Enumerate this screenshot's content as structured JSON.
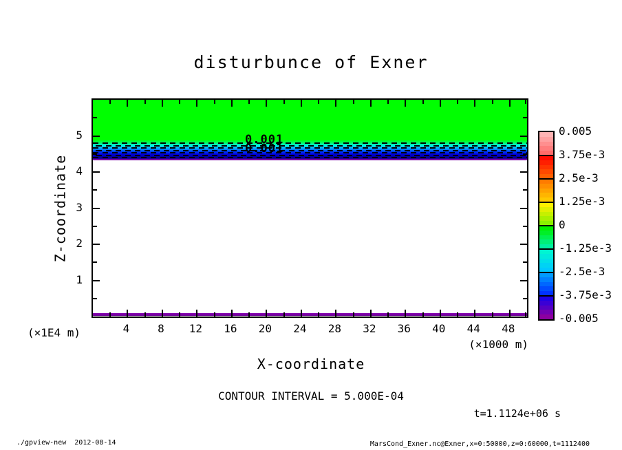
{
  "title": "disturbunce of Exner",
  "axes": {
    "x": {
      "label": "X-coordinate",
      "unit": "(×1000 m)",
      "range": [
        0,
        50
      ],
      "major_ticks": [
        4,
        8,
        12,
        16,
        20,
        24,
        28,
        32,
        36,
        40,
        44,
        48
      ],
      "minor_ticks": [
        2,
        6,
        10,
        14,
        18,
        22,
        26,
        30,
        34,
        38,
        42,
        46,
        50
      ]
    },
    "y": {
      "label": "Z-coordinate",
      "unit": "(×1E4 m)",
      "range": [
        0,
        6
      ],
      "major_ticks": [
        1,
        2,
        3,
        4,
        5
      ],
      "minor_ticks": [
        0.5,
        1.5,
        2.5,
        3.5,
        4.5,
        5.5
      ]
    }
  },
  "plot": {
    "contour_labels": [
      "0.001",
      "0.001"
    ],
    "colors": {
      "upper_region_green": "#00ff00",
      "band_gradient": [
        "#00ff00",
        "#00fa55",
        "#00efef",
        "#009eff",
        "#0040ff",
        "#0000dd",
        "#000090",
        "#5e00a8"
      ],
      "purple_line": "#7a00a8",
      "surface_band_top": "#8a00b4",
      "surface_band_bottom": "#6a0096",
      "dash_color": "#000000",
      "background": "#ffffff"
    },
    "dashed_contour_count": 7
  },
  "colorbar": {
    "labels": [
      "0.005",
      "3.75e-3",
      "2.5e-3",
      "1.25e-3",
      "0",
      "-1.25e-3",
      "-2.5e-3",
      "-3.75e-3",
      "-0.005"
    ],
    "cells": [
      {
        "start": "#ffb3b3",
        "end": "#ff6b6b"
      },
      {
        "start": "#ff0a00",
        "end": "#ff5e00"
      },
      {
        "start": "#ff7b00",
        "end": "#ffc800"
      },
      {
        "start": "#fff000",
        "end": "#8cf000"
      },
      {
        "start": "#00ef00",
        "end": "#00f0a0"
      },
      {
        "start": "#00f5d2",
        "end": "#00c8ff"
      },
      {
        "start": "#009bff",
        "end": "#0032ff"
      },
      {
        "start": "#1e00e6",
        "end": "#8c00a0"
      }
    ]
  },
  "annotations": {
    "contour_interval": "CONTOUR INTERVAL = 5.000E-04",
    "time": "t=1.1124e+06 s"
  },
  "footer": {
    "left": "./gpview-new  2012-08-14",
    "right": "MarsCond_Exner.nc@Exner,x=0:50000,z=0:60000,t=1112400"
  },
  "chart_data": {
    "type": "heatmap",
    "subtype": "filled-contour",
    "title": "disturbunce of Exner",
    "xlabel": "X-coordinate",
    "x_unit": "(×1000 m)",
    "ylabel": "Z-coordinate",
    "y_unit": "(×1E4 m)",
    "xlim": [
      0,
      50
    ],
    "ylim": [
      0,
      6
    ],
    "x_ticks": [
      4,
      8,
      12,
      16,
      20,
      24,
      28,
      32,
      36,
      40,
      44,
      48
    ],
    "y_ticks": [
      1,
      2,
      3,
      4,
      5
    ],
    "contour_interval": 0.0005,
    "contour_line_style": "dashed (negative levels)",
    "time_seconds": 1112400,
    "legend_levels": [
      0.005,
      0.00375,
      0.0025,
      0.00125,
      0,
      -0.00125,
      -0.0025,
      -0.00375,
      -0.005
    ],
    "legend_position": "right",
    "features": [
      {
        "name": "upper-region",
        "x_range": [
          0,
          50
        ],
        "z_range": [
          4.9,
          6.0
        ],
        "value": 0,
        "color": "green"
      },
      {
        "name": "negative-transition-band",
        "x_range": [
          0,
          50
        ],
        "z_range": [
          4.42,
          4.9
        ],
        "value_range": [
          0,
          -0.005
        ],
        "description": "value drops from 0 at z≈4.9 to ≈-0.005 at z≈4.45, uniform in x; dashed contour lines every 5e-4 with overlapping labels 0.001 near x≈18"
      },
      {
        "name": "surface-band",
        "x_range": [
          0,
          50
        ],
        "z_range": [
          0,
          0.08
        ],
        "value": -0.005,
        "color": "purple"
      },
      {
        "name": "interior-blank",
        "x_range": [
          0,
          50
        ],
        "z_range": [
          0.08,
          4.42
        ],
        "value": "below color scale (< -0.005), rendered white"
      }
    ]
  }
}
